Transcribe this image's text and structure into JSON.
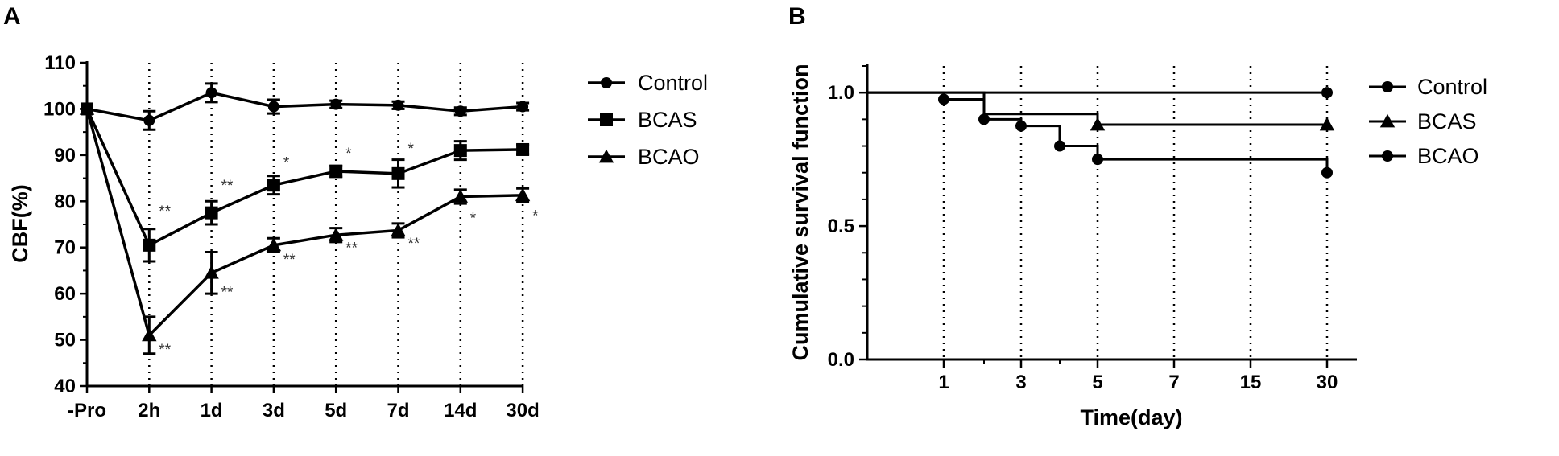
{
  "chart_data": [
    {
      "panel": "A",
      "type": "line",
      "title": "",
      "xlabel": "",
      "ylabel": "CBF(%)",
      "categories": [
        "-Pro",
        "2h",
        "1d",
        "3d",
        "5d",
        "7d",
        "14d",
        "30d"
      ],
      "ylim": [
        40,
        110
      ],
      "yticks": [
        40,
        50,
        60,
        70,
        80,
        90,
        100,
        110
      ],
      "grid": "vertical dotted lines at each time point after -Pro",
      "legend": "right",
      "series": [
        {
          "name": "Control",
          "marker": "circle",
          "values": [
            100,
            97.5,
            103.5,
            100.5,
            101,
            100.8,
            99.5,
            100.5
          ],
          "errors": [
            0,
            2,
            2,
            1.5,
            0.8,
            0.8,
            0.8,
            0.8
          ]
        },
        {
          "name": "BCAS",
          "marker": "square",
          "values": [
            100,
            70.5,
            77.5,
            83.5,
            86.5,
            86,
            91,
            91.2
          ],
          "errors": [
            0,
            3.5,
            2.5,
            2,
            1.2,
            3,
            2,
            1
          ]
        },
        {
          "name": "BCAO",
          "marker": "triangle",
          "values": [
            100,
            51,
            64.5,
            70.5,
            72.7,
            73.7,
            81,
            81.3
          ],
          "errors": [
            0,
            4,
            4.5,
            1.5,
            1.5,
            1.5,
            1.5,
            1.5
          ]
        }
      ],
      "annotations": [
        {
          "label": "**",
          "category": "2h",
          "value": 78
        },
        {
          "label": "**",
          "category": "2h",
          "value": 48
        },
        {
          "label": "**",
          "category": "1d",
          "value": 83.5
        },
        {
          "label": "**",
          "category": "1d",
          "value": 60.5
        },
        {
          "label": "*",
          "category": "3d",
          "value": 88.5
        },
        {
          "label": "**",
          "category": "3d",
          "value": 67.5
        },
        {
          "label": "*",
          "category": "5d",
          "value": 90.5
        },
        {
          "label": "**",
          "category": "5d",
          "value": 70
        },
        {
          "label": "*",
          "category": "7d",
          "value": 91.5
        },
        {
          "label": "**",
          "category": "7d",
          "value": 71
        },
        {
          "label": "*",
          "category": "14d",
          "value": 76.5
        },
        {
          "label": "*",
          "category": "30d",
          "value": 77
        }
      ]
    },
    {
      "panel": "B",
      "type": "line",
      "title": "",
      "xlabel": "Time(day)",
      "ylabel": "Cumulative survival function",
      "categories": [
        "1",
        "3",
        "5",
        "7",
        "15",
        "30"
      ],
      "ylim": [
        0,
        1.1
      ],
      "yticks": [
        "0.0",
        "0.5",
        "1.0"
      ],
      "grid": "vertical dotted lines at each x tick",
      "legend": "right",
      "series": [
        {
          "name": "Control",
          "marker": "circle",
          "steps": [
            [
              0,
              1.0
            ],
            [
              30,
              1.0
            ]
          ],
          "points": [
            [
              30,
              1.0
            ]
          ]
        },
        {
          "name": "BCAS",
          "marker": "triangle",
          "steps": [
            [
              0,
              1.0
            ],
            [
              2,
              1.0
            ],
            [
              2,
              0.92
            ],
            [
              5,
              0.92
            ],
            [
              5,
              0.88
            ],
            [
              30,
              0.88
            ]
          ],
          "points": [
            [
              5,
              0.88
            ],
            [
              30,
              0.88
            ]
          ]
        },
        {
          "name": "BCAO",
          "marker": "circle",
          "steps": [
            [
              0,
              1.0
            ],
            [
              1,
              1.0
            ],
            [
              1,
              0.975
            ],
            [
              2,
              0.975
            ],
            [
              2,
              0.9
            ],
            [
              3,
              0.9
            ],
            [
              3,
              0.875
            ],
            [
              4,
              0.875
            ],
            [
              4,
              0.8
            ],
            [
              5,
              0.8
            ],
            [
              5,
              0.75
            ],
            [
              30,
              0.75
            ],
            [
              30,
              0.7
            ]
          ],
          "points": [
            [
              1,
              0.975
            ],
            [
              2,
              0.9
            ],
            [
              3,
              0.875
            ],
            [
              4,
              0.8
            ],
            [
              5,
              0.75
            ],
            [
              30,
              0.7
            ]
          ]
        }
      ]
    }
  ],
  "panels": {
    "a_label": "A",
    "b_label": "B"
  }
}
